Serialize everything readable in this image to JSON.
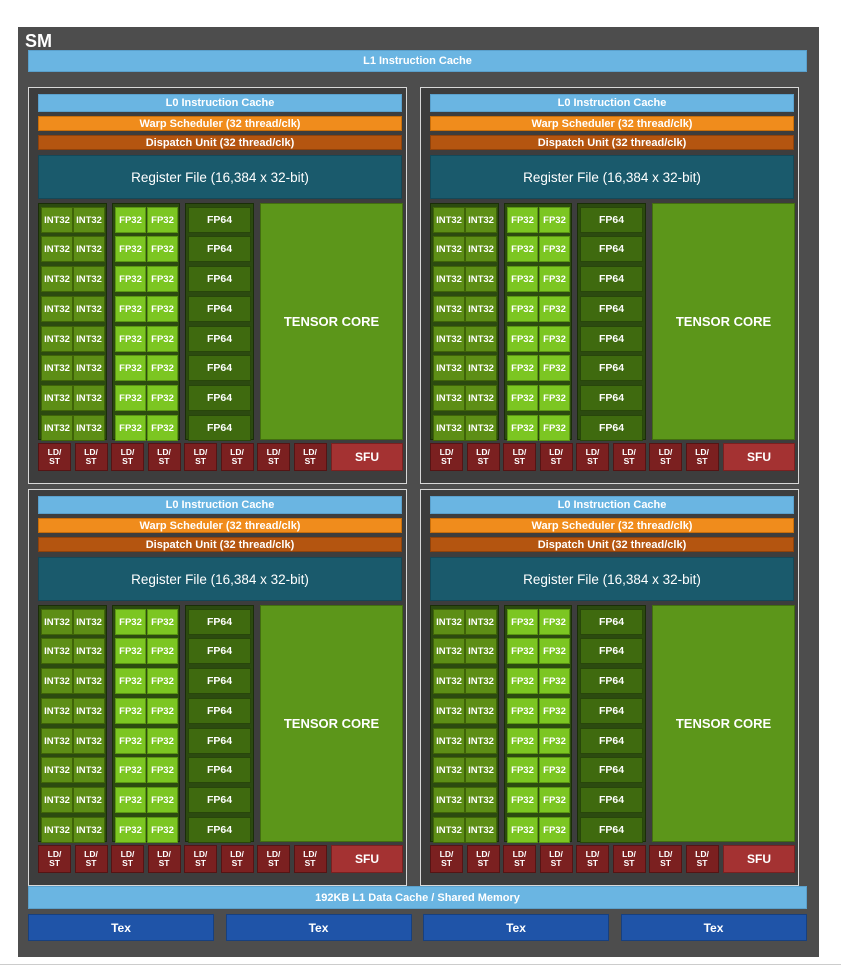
{
  "title": "SM",
  "l1_instruction_cache": "L1 Instruction Cache",
  "l1_data_cache": "192KB L1 Data Cache / Shared Memory",
  "tex_units": [
    "Tex",
    "Tex",
    "Tex",
    "Tex"
  ],
  "partition": {
    "l0_instruction_cache": "L0 Instruction Cache",
    "warp_scheduler": "Warp Scheduler (32 thread/clk)",
    "dispatch_unit": "Dispatch Unit (32 thread/clk)",
    "register_file": "Register File (16,384 x 32-bit)",
    "int32_label": "INT32",
    "fp32_label": "FP32",
    "fp64_label": "FP64",
    "tensor_core": "TENSOR CORE",
    "ldst_top": "LD/",
    "ldst_bottom": "ST",
    "sfu": "SFU",
    "rows": 8,
    "ldst_units": 8
  },
  "colors": {
    "sm_background": "#4d4d4d",
    "cache": "#6ab5e2",
    "warp_scheduler": "#f08c1c",
    "dispatch_unit": "#b45510",
    "register_file": "#1a5a6c",
    "int32": "#5d8e16",
    "fp32": "#7cc622",
    "fp64": "#3f6a0f",
    "tensor_core": "#5c961a",
    "ldst": "#7b2020",
    "sfu": "#a43232",
    "tex": "#1f54a8"
  }
}
